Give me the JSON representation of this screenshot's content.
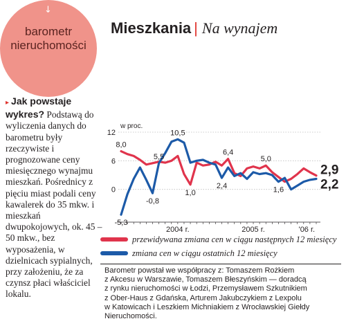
{
  "badge": {
    "arrow_icon": "↓",
    "text": "barometr\nnieruchomości",
    "color": "#f0938a"
  },
  "header": {
    "title": "Mieszkania",
    "separator": "|",
    "subtitle": "Na wynajem",
    "accent": "#e0342e"
  },
  "intro": {
    "bullet_icon": "▸",
    "lead": "Jak powstaje wykres?",
    "body": "Podstawą do wyliczenia danych do barometru były rzeczywiste i prognozowane ceny miesięcznego wynajmu mieszkań. Pośrednicy z pięciu miast podali ceny kawalerek do 35 mkw. i mieszkań dwupokojowych, ok. 45 – 50 mkw., bez wyposażenia, w dzielnicach sypialnych, przy założeniu, że za czynsz płaci właściciel lokalu."
  },
  "chart_data": {
    "type": "line",
    "unit_label": "w proc.",
    "ylim": [
      -6,
      12
    ],
    "yticks": [
      12,
      6,
      0
    ],
    "xtick_labels": [
      {
        "label": "2004 r.",
        "x": 9
      },
      {
        "label": "2005 r.",
        "x": 21
      },
      {
        "label": "'06 r.",
        "x": 29.5
      }
    ],
    "grid": true,
    "series": [
      {
        "name": "przewidywana zmiana cen w ciągu następnych 12 miesięcy",
        "color": "#e0344c",
        "x": [
          0,
          1,
          2,
          3,
          4,
          5,
          6,
          7,
          8,
          9,
          10,
          11,
          12,
          13,
          14,
          15,
          16,
          17,
          18,
          19,
          20,
          21,
          22,
          23,
          24,
          25,
          26,
          27,
          28,
          29,
          30,
          31
        ],
        "y": [
          8.0,
          7.4,
          7.0,
          6.2,
          5.2,
          5.5,
          5.8,
          5.6,
          6.0,
          7.0,
          3.2,
          1.0,
          5.6,
          5.0,
          5.2,
          5.8,
          5.0,
          6.4,
          3.4,
          2.8,
          4.4,
          4.8,
          4.4,
          5.0,
          3.6,
          2.6,
          1.6,
          2.2,
          3.2,
          4.4,
          3.6,
          2.9
        ]
      },
      {
        "name": "zmiana cen w ciągu ostatnich 12 miesięcy",
        "color": "#1c5aa8",
        "x": [
          0,
          1,
          2,
          3,
          4,
          5,
          6,
          7,
          8,
          9,
          10,
          11,
          12,
          13,
          14,
          15,
          16,
          17,
          18,
          19,
          20,
          21,
          22,
          23,
          24,
          25,
          26,
          27,
          28,
          29,
          30,
          31
        ],
        "y": [
          -5.3,
          -1.0,
          2.2,
          4.6,
          2.0,
          -0.8,
          5.5,
          7.6,
          10.0,
          10.5,
          9.8,
          5.6,
          6.0,
          6.2,
          5.6,
          5.2,
          2.4,
          4.6,
          2.8,
          3.4,
          2.2,
          3.6,
          3.2,
          3.4,
          3.0,
          1.6,
          2.4,
          0.0,
          0.8,
          1.6,
          2.0,
          2.2
        ]
      }
    ],
    "data_labels": [
      {
        "text": "8,0",
        "series": 0,
        "x": 0,
        "pos": "above"
      },
      {
        "text": "-5,3",
        "series": 1,
        "x": 0,
        "pos": "below"
      },
      {
        "text": "5,5",
        "series": 1,
        "x": 6,
        "pos": "above"
      },
      {
        "text": "-0,8",
        "series": 1,
        "x": 5,
        "pos": "below"
      },
      {
        "text": "10,5",
        "series": 1,
        "x": 9,
        "pos": "above"
      },
      {
        "text": "1,0",
        "series": 0,
        "x": 11,
        "pos": "below"
      },
      {
        "text": "6,4",
        "series": 0,
        "x": 17,
        "pos": "above"
      },
      {
        "text": "2,4",
        "series": 1,
        "x": 16,
        "pos": "below"
      },
      {
        "text": "5,0",
        "series": 0,
        "x": 23,
        "pos": "above"
      },
      {
        "text": "1,6",
        "series": 1,
        "x": 25,
        "pos": "below"
      }
    ],
    "end_labels": [
      {
        "text": "2,9",
        "series": 0
      },
      {
        "text": "2,2",
        "series": 1
      }
    ]
  },
  "legend": [
    {
      "label": "przewidywana zmiana cen w ciągu następnych 12 miesięcy",
      "color": "#e0344c"
    },
    {
      "label": "zmiana cen w ciągu ostatnich 12 miesięcy",
      "color": "#1c5aa8"
    }
  ],
  "source": "Barometr powstał we współpracy z: Tomaszem Rożkiem\nz Akcesu w Warszawie, Tomaszem Błeszyńskim — doradcą\nz rynku nieruchomości w Łodzi, Przemysławem Szkutnikiem\nz Ober-Haus z Gdańska, Arturem Jakubczykiem z Lexpolu\nw Katowicach i Leszkiem Michniakiem z Wrocławskiej Giełdy\nNieruchomości."
}
